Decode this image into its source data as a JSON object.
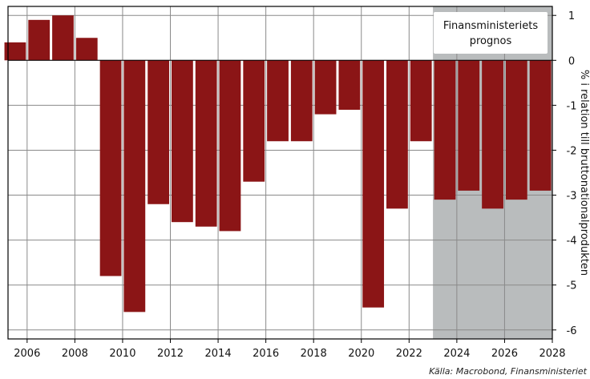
{
  "chart_data": {
    "type": "bar",
    "x": [
      2005,
      2006,
      2007,
      2008,
      2009,
      2010,
      2011,
      2012,
      2013,
      2014,
      2015,
      2016,
      2017,
      2018,
      2019,
      2020,
      2021,
      2022,
      2023,
      2024,
      2025,
      2026,
      2027
    ],
    "values": [
      0.4,
      0.9,
      1.0,
      0.5,
      -4.8,
      -5.6,
      -3.2,
      -3.6,
      -3.7,
      -3.8,
      -2.7,
      -1.8,
      -1.8,
      -1.2,
      -1.1,
      -5.5,
      -3.3,
      -1.8,
      -3.1,
      -2.9,
      -3.3,
      -3.1,
      -2.9
    ],
    "xticks": [
      "2006",
      "2008",
      "2010",
      "2012",
      "2014",
      "2016",
      "2018",
      "2020",
      "2022",
      "2024",
      "2026",
      "2028"
    ],
    "yticks": [
      "1",
      "0",
      "-1",
      "-2",
      "-3",
      "-4",
      "-5",
      "-6"
    ],
    "ylabel": "% i relation till bruttonationalprodukten",
    "ylim": [
      -6.2,
      1.2
    ],
    "forecast_label_line1": "Finansministeriets",
    "forecast_label_line2": "prognos",
    "forecast_from_year": 2023,
    "source": "Källa: Macrobond, Finansministeriet",
    "grid": true,
    "colors": {
      "bar": "#8b1516",
      "forecast_shade": "#b9bcbd",
      "grid": "#8a8a8a"
    }
  }
}
